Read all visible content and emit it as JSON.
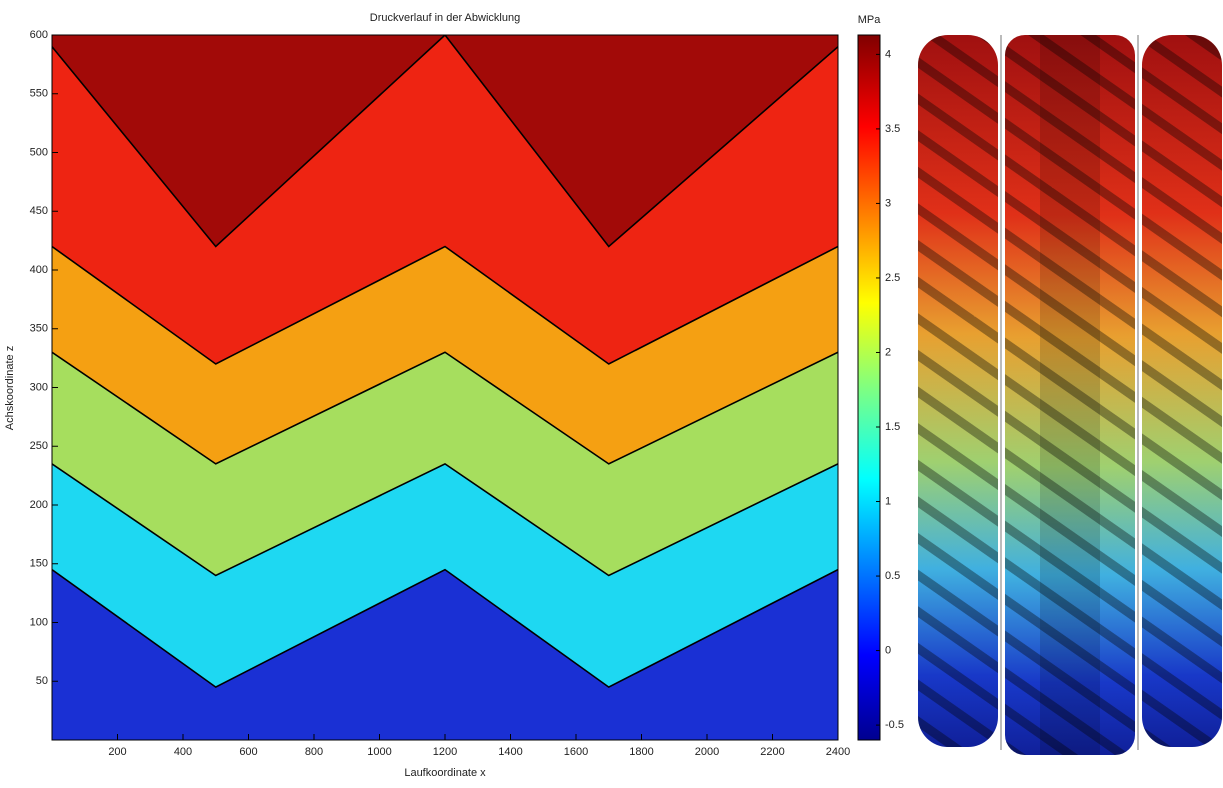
{
  "chart_data": {
    "type": "contour",
    "title": "Druckverlauf in der Abwicklung",
    "x_label": "Laufkoordinate x",
    "y_label": "Achskoordinate z",
    "colorbar_label": "MPa",
    "xlim": [
      0,
      2400
    ],
    "ylim": [
      0,
      600
    ],
    "xticks": [
      200,
      400,
      600,
      800,
      1000,
      1200,
      1400,
      1600,
      1800,
      2000,
      2200,
      2400
    ],
    "yticks": [
      50,
      100,
      150,
      200,
      250,
      300,
      350,
      400,
      450,
      500,
      550,
      600
    ],
    "clim": [
      -0.6,
      4.13
    ],
    "cticks": [
      -0.5,
      0,
      0.5,
      1,
      1.5,
      2,
      2.5,
      3,
      3.5,
      4
    ],
    "x": [
      0,
      500,
      1200,
      1700,
      2400
    ],
    "boundaries": [
      [
        145,
        45,
        145,
        45,
        145
      ],
      [
        235,
        140,
        235,
        140,
        235
      ],
      [
        330,
        235,
        330,
        235,
        330
      ],
      [
        420,
        320,
        420,
        320,
        420
      ],
      [
        590,
        420,
        600,
        420,
        590
      ]
    ],
    "levels": [
      {
        "value": -0.2,
        "color": "#1a30d4"
      },
      {
        "value": 1.1,
        "color": "#1ed8f2"
      },
      {
        "value": 2,
        "color": "#a6de5e"
      },
      {
        "value": 2.9,
        "color": "#f5a012"
      },
      {
        "value": 3.6,
        "color": "#ee2412"
      },
      {
        "value": 4,
        "color": "#a20a08"
      }
    ]
  }
}
